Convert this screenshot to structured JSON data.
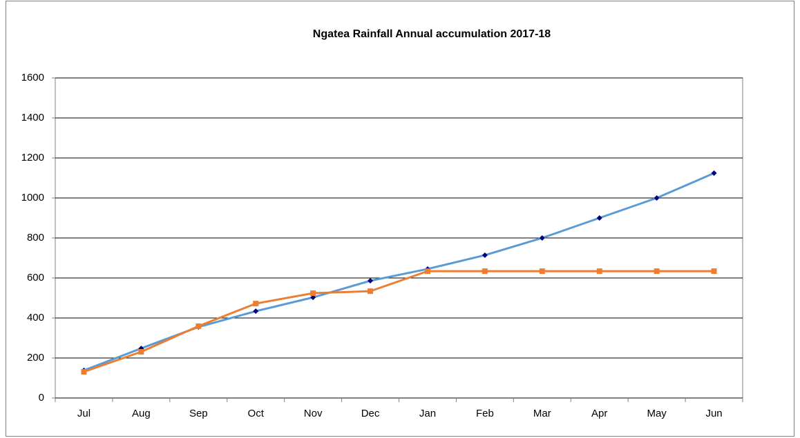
{
  "chart_data": {
    "type": "line",
    "title": "Ngatea Rainfall Annual accumulation 2017-18",
    "categories": [
      "Jul",
      "Aug",
      "Sep",
      "Oct",
      "Nov",
      "Dec",
      "Jan",
      "Feb",
      "Mar",
      "Apr",
      "May",
      "Jun"
    ],
    "series": [
      {
        "color": "#5b9bd5",
        "marker_color": "#000080",
        "marker": "diamond",
        "values": [
          138,
          248,
          355,
          434,
          503,
          586,
          645,
          714,
          800,
          900,
          1000,
          1124
        ]
      },
      {
        "color": "#ed7d31",
        "marker_color": "#ed7d31",
        "marker": "square",
        "values": [
          131,
          231,
          359,
          472,
          524,
          534,
          634,
          634,
          634,
          634,
          634,
          634
        ]
      }
    ],
    "ylim": [
      0,
      1600
    ],
    "yticks": [
      0,
      200,
      400,
      600,
      800,
      1000,
      1200,
      1400,
      1600
    ],
    "grid": true
  }
}
